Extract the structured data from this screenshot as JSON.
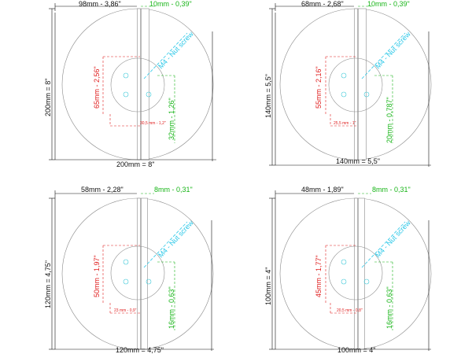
{
  "colors": {
    "red": "#e02020",
    "green": "#18b518",
    "cyan": "#2cc8e8",
    "line": "#8a8a8a",
    "text": "#111111"
  },
  "diagrams": [
    {
      "top_left": "98mm - 3,86\"",
      "top_right": "10mm - 0,39\"",
      "left": "200mm = 8\"",
      "bottom": "200mm = 8\"",
      "red_vertical": "65mm - 2,56\"",
      "red_horizontal": "30,5 mm - 1,2\"",
      "green_vertical": "32mm - 1,26\"",
      "cyan": "M4 - Nut screw"
    },
    {
      "top_left": "68mm - 2,68\"",
      "top_right": "10mm - 0,39\"",
      "left": "140mm = 5,5\"",
      "bottom": "140mm = 5,5\"",
      "red_vertical": "55mm - 2,16\"",
      "red_horizontal": "25,5 mm - 1\"",
      "green_vertical": "20mm - 0,787\"",
      "cyan": "M4 - Nut screw"
    },
    {
      "top_left": "58mm - 2,28\"",
      "top_right": "8mm - 0,31\"",
      "left": "120mm = 4,75\"",
      "bottom": "120mm = 4,75\"",
      "red_vertical": "50mm - 1,97\"",
      "red_horizontal": "23 mm - 0,9\"",
      "green_vertical": "16mm - 0,63\"",
      "cyan": "M4 - Nut screw"
    },
    {
      "top_left": "48mm - 1,89\"",
      "top_right": "8mm - 0,31\"",
      "left": "100mm = 4\"",
      "bottom": "100mm = 4\"",
      "red_vertical": "45mm - 1,77\"",
      "red_horizontal": "20,5 mm - 0,8\"",
      "green_vertical": "16mm - 0,63\"",
      "cyan": "M4 - Nut screw"
    }
  ]
}
